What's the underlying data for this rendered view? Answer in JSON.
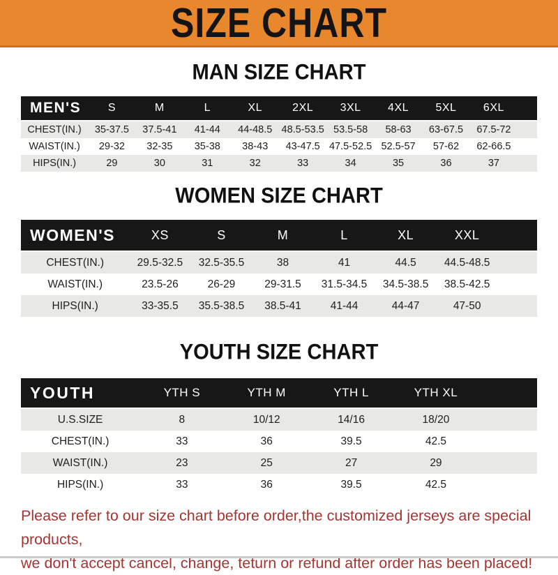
{
  "colors": {
    "banner_bg": "#E8872B",
    "banner_border": "#C9731A",
    "banner_text": "#141414",
    "table_header_bg": "#171717",
    "table_header_text": "#FFFFFF",
    "row_alt_bg": "#E8E8E6",
    "row_text": "#1E1E1E",
    "footer_text": "#A53431"
  },
  "banner": {
    "title": "SIZE CHART"
  },
  "sections": [
    {
      "heading": "MAN SIZE CHART",
      "table": {
        "label": "MEN'S",
        "columns": [
          "S",
          "M",
          "L",
          "XL",
          "2XL",
          "3XL",
          "4XL",
          "5XL",
          "6XL"
        ],
        "rows": [
          {
            "label": "CHEST(IN.)",
            "values": [
              "35-37.5",
              "37.5-41",
              "41-44",
              "44-48.5",
              "48.5-53.5",
              "53.5-58",
              "58-63",
              "63-67.5",
              "67.5-72"
            ]
          },
          {
            "label": "WAIST(IN.)",
            "values": [
              "29-32",
              "32-35",
              "35-38",
              "38-43",
              "43-47.5",
              "47.5-52.5",
              "52.5-57",
              "57-62",
              "62-66.5"
            ]
          },
          {
            "label": "HIPS(IN.)",
            "values": [
              "29",
              "30",
              "31",
              "32",
              "33",
              "34",
              "35",
              "36",
              "37"
            ]
          }
        ]
      }
    },
    {
      "heading": "WOMEN SIZE CHART",
      "table": {
        "label": "WOMEN'S",
        "columns": [
          "XS",
          "S",
          "M",
          "L",
          "XL",
          "XXL"
        ],
        "rows": [
          {
            "label": "CHEST(IN.)",
            "values": [
              "29.5-32.5",
              "32.5-35.5",
              "38",
              "41",
              "44.5",
              "44.5-48.5"
            ]
          },
          {
            "label": "WAIST(IN.)",
            "values": [
              "23.5-26",
              "26-29",
              "29-31.5",
              "31.5-34.5",
              "34.5-38.5",
              "38.5-42.5"
            ]
          },
          {
            "label": "HIPS(IN.)",
            "values": [
              "33-35.5",
              "35.5-38.5",
              "38.5-41",
              "41-44",
              "44-47",
              "47-50"
            ]
          }
        ]
      }
    },
    {
      "heading": "YOUTH SIZE CHART",
      "table": {
        "label": "YOUTH",
        "columns": [
          "YTH S",
          "YTH M",
          "YTH L",
          "YTH XL"
        ],
        "rows": [
          {
            "label": "U.S.SIZE",
            "values": [
              "8",
              "10/12",
              "14/16",
              "18/20"
            ]
          },
          {
            "label": "CHEST(IN.)",
            "values": [
              "33",
              "36",
              "39.5",
              "42.5"
            ]
          },
          {
            "label": "WAIST(IN.)",
            "values": [
              "23",
              "25",
              "27",
              "29"
            ]
          },
          {
            "label": "HIPS(IN.)",
            "values": [
              "33",
              "36",
              "39.5",
              "42.5"
            ]
          }
        ]
      }
    }
  ],
  "footer": {
    "line1": "Please refer to our size chart before order,the customized jerseys are special products,",
    "line2": "we don't accept cancel, change, teturn or refund after order has been placed!"
  }
}
